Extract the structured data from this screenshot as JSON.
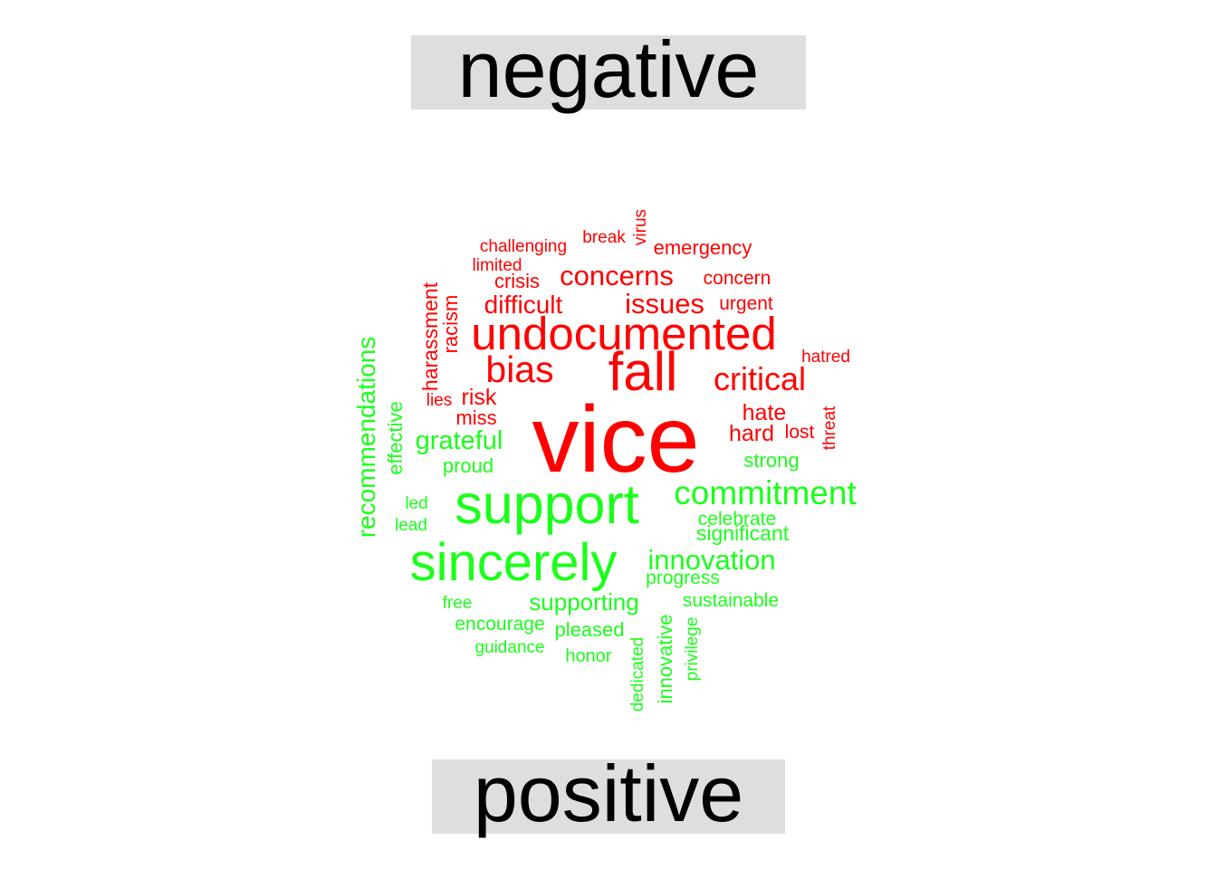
{
  "labels": {
    "negative": "negative",
    "positive": "positive"
  },
  "colors": {
    "negative": "#ff0000",
    "positive": "#1aff1a",
    "label_bg": "#dedede"
  },
  "words": {
    "negative": [
      "vice",
      "fall",
      "undocumented",
      "bias",
      "critical",
      "concerns",
      "issues",
      "difficult",
      "harassment",
      "racism",
      "challenging",
      "break",
      "virus",
      "emergency",
      "limited",
      "crisis",
      "concern",
      "urgent",
      "hatred",
      "hate",
      "hard",
      "lost",
      "threat",
      "lies",
      "risk",
      "miss"
    ],
    "positive": [
      "support",
      "sincerely",
      "commitment",
      "recommendations",
      "effective",
      "grateful",
      "proud",
      "strong",
      "led",
      "lead",
      "celebrate",
      "significant",
      "innovation",
      "progress",
      "free",
      "supporting",
      "sustainable",
      "encourage",
      "pleased",
      "guidance",
      "honor",
      "dedicated",
      "innovative",
      "privilege"
    ]
  }
}
